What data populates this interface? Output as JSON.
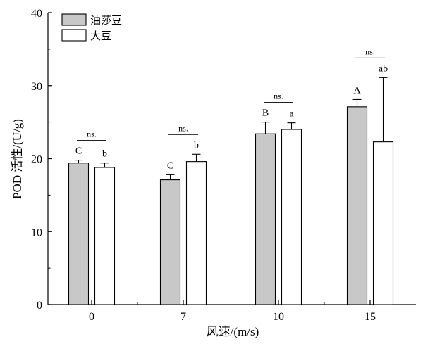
{
  "chart_data": {
    "type": "bar",
    "title": "",
    "xlabel": "风速/(m/s)",
    "ylabel": "POD 活性/(U/g)",
    "categories": [
      "0",
      "7",
      "10",
      "15"
    ],
    "ylim": [
      0,
      40
    ],
    "yticks": [
      0,
      10,
      20,
      30,
      40
    ],
    "legend_position": "top-left",
    "grid": false,
    "series": [
      {
        "name": "油莎豆",
        "color": "#c8c8c8",
        "values": [
          19.4,
          17.1,
          23.4,
          27.1
        ],
        "errors": [
          0.4,
          0.7,
          1.6,
          1.0
        ],
        "sig": [
          "C",
          "C",
          "B",
          "A"
        ]
      },
      {
        "name": "大豆",
        "color": "#ffffff",
        "values": [
          18.8,
          19.6,
          24.0,
          22.3
        ],
        "errors": [
          0.6,
          1.0,
          0.9,
          8.8
        ],
        "sig": [
          "b",
          "b",
          "a",
          "ab"
        ]
      }
    ],
    "pair_annotations": [
      "ns.",
      "ns.",
      "ns.",
      "ns."
    ]
  }
}
